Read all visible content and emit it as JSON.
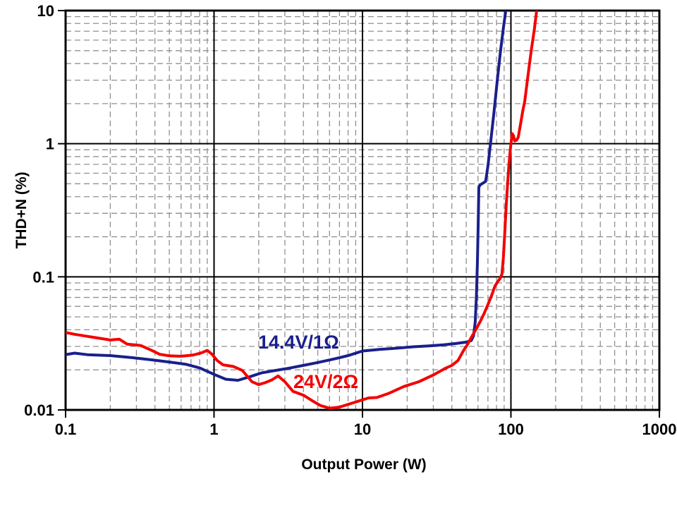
{
  "palette": {
    "series_blue": "#1a1f8c",
    "series_red": "#f40000",
    "grid_minor": "#909090",
    "axis_black": "#000000",
    "background": "#ffffff"
  },
  "chart_data": {
    "type": "line",
    "title": "",
    "xlabel": "Output Power (W)",
    "ylabel": "THD+N (%)",
    "x_scale": "log",
    "y_scale": "log",
    "xlim": [
      0.1,
      1000
    ],
    "ylim": [
      0.01,
      10
    ],
    "grid": "minor log gridlines dashed gray, major decade lines solid black, full border",
    "legend_position": "inline labels next to curves",
    "x_ticks": [
      {
        "value": 0.1,
        "label": "0.1"
      },
      {
        "value": 1,
        "label": "1"
      },
      {
        "value": 10,
        "label": "10"
      },
      {
        "value": 100,
        "label": "100"
      },
      {
        "value": 1000,
        "label": "1000"
      }
    ],
    "y_ticks": [
      {
        "value": 0.01,
        "label": "0.01"
      },
      {
        "value": 0.1,
        "label": "0.1"
      },
      {
        "value": 1,
        "label": "1"
      },
      {
        "value": 10,
        "label": "10"
      }
    ],
    "series": [
      {
        "name": "14.4V/1Ω",
        "color_key": "series_blue",
        "points": [
          [
            0.1,
            0.026
          ],
          [
            0.115,
            0.0267
          ],
          [
            0.14,
            0.026
          ],
          [
            0.2,
            0.0256
          ],
          [
            0.28,
            0.0247
          ],
          [
            0.38,
            0.0238
          ],
          [
            0.5,
            0.0229
          ],
          [
            0.65,
            0.022
          ],
          [
            0.8,
            0.0207
          ],
          [
            1.0,
            0.0185
          ],
          [
            1.2,
            0.017
          ],
          [
            1.45,
            0.0167
          ],
          [
            1.75,
            0.0178
          ],
          [
            2.1,
            0.019
          ],
          [
            2.6,
            0.0198
          ],
          [
            3.2,
            0.0206
          ],
          [
            4,
            0.0216
          ],
          [
            5,
            0.0227
          ],
          [
            6.5,
            0.0242
          ],
          [
            8,
            0.0256
          ],
          [
            10,
            0.0277
          ],
          [
            13,
            0.0285
          ],
          [
            17,
            0.0291
          ],
          [
            22,
            0.0298
          ],
          [
            28,
            0.0303
          ],
          [
            35,
            0.0308
          ],
          [
            43,
            0.0316
          ],
          [
            50,
            0.0323
          ],
          [
            54,
            0.0332
          ],
          [
            56,
            0.036
          ],
          [
            57.5,
            0.046
          ],
          [
            58.5,
            0.07
          ],
          [
            59.5,
            0.13
          ],
          [
            60.2,
            0.25
          ],
          [
            60.8,
            0.47
          ],
          [
            62,
            0.49
          ],
          [
            67.5,
            0.52
          ],
          [
            70,
            0.68
          ],
          [
            73,
            1.02
          ],
          [
            77,
            1.75
          ],
          [
            81,
            3.0
          ],
          [
            85,
            4.9
          ],
          [
            89,
            7.4
          ],
          [
            93,
            10.6
          ]
        ]
      },
      {
        "name": "24V/2Ω",
        "color_key": "series_red",
        "points": [
          [
            0.1,
            0.0382
          ],
          [
            0.115,
            0.037
          ],
          [
            0.14,
            0.0357
          ],
          [
            0.17,
            0.0345
          ],
          [
            0.2,
            0.0335
          ],
          [
            0.23,
            0.034
          ],
          [
            0.26,
            0.0312
          ],
          [
            0.32,
            0.0305
          ],
          [
            0.38,
            0.028
          ],
          [
            0.43,
            0.0262
          ],
          [
            0.5,
            0.0255
          ],
          [
            0.6,
            0.0253
          ],
          [
            0.72,
            0.0258
          ],
          [
            0.82,
            0.0268
          ],
          [
            0.9,
            0.028
          ],
          [
            0.97,
            0.0262
          ],
          [
            1.05,
            0.0235
          ],
          [
            1.15,
            0.0218
          ],
          [
            1.35,
            0.0212
          ],
          [
            1.55,
            0.0198
          ],
          [
            1.8,
            0.0163
          ],
          [
            2.0,
            0.0155
          ],
          [
            2.2,
            0.016
          ],
          [
            2.45,
            0.0168
          ],
          [
            2.7,
            0.018
          ],
          [
            3.0,
            0.0163
          ],
          [
            3.4,
            0.0138
          ],
          [
            4.0,
            0.0129
          ],
          [
            4.6,
            0.0117
          ],
          [
            5.2,
            0.0108
          ],
          [
            6.0,
            0.0103
          ],
          [
            7.0,
            0.0105
          ],
          [
            8.0,
            0.011
          ],
          [
            10,
            0.0119
          ],
          [
            11,
            0.0123
          ],
          [
            12.5,
            0.0124
          ],
          [
            15,
            0.0133
          ],
          [
            19,
            0.015
          ],
          [
            24,
            0.0163
          ],
          [
            30,
            0.0183
          ],
          [
            36,
            0.0205
          ],
          [
            40,
            0.0216
          ],
          [
            44,
            0.0235
          ],
          [
            48,
            0.028
          ],
          [
            51,
            0.031
          ],
          [
            54,
            0.035
          ],
          [
            58,
            0.04
          ],
          [
            62,
            0.046
          ],
          [
            66,
            0.053
          ],
          [
            70,
            0.062
          ],
          [
            74,
            0.072
          ],
          [
            78,
            0.085
          ],
          [
            82,
            0.093
          ],
          [
            85,
            0.098
          ],
          [
            87,
            0.105
          ],
          [
            89,
            0.14
          ],
          [
            91,
            0.22
          ],
          [
            93,
            0.35
          ],
          [
            95,
            0.5
          ],
          [
            97,
            0.7
          ],
          [
            99,
            0.9
          ],
          [
            100.5,
            1.05
          ],
          [
            102,
            1.19
          ],
          [
            104,
            1.15
          ],
          [
            106,
            1.05
          ],
          [
            109,
            1.06
          ],
          [
            112,
            1.12
          ],
          [
            116,
            1.4
          ],
          [
            120,
            1.75
          ],
          [
            124,
            2.1
          ],
          [
            130,
            3.2
          ],
          [
            137,
            5.0
          ],
          [
            144,
            7.3
          ],
          [
            150,
            10.6
          ]
        ]
      }
    ]
  }
}
